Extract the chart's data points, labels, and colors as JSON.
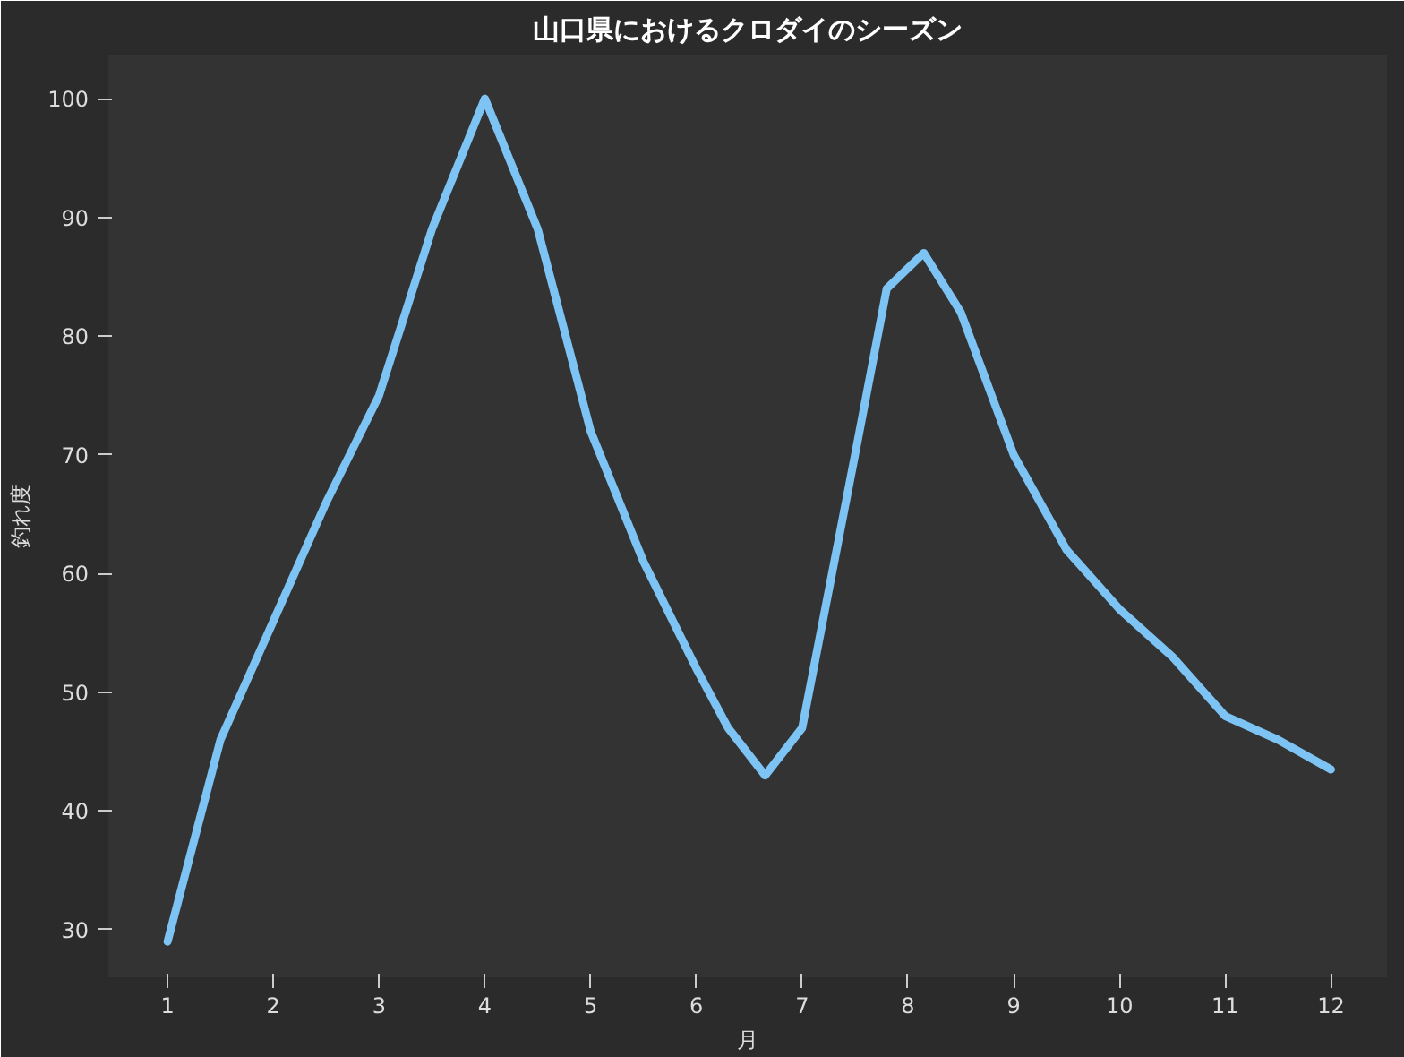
{
  "chart_data": {
    "type": "line",
    "title": "山口県におけるクロダイのシーズン",
    "xlabel": "月",
    "ylabel": "釣れ度",
    "x": [
      1,
      1.5,
      2,
      2.5,
      3,
      3.5,
      4,
      4.5,
      5,
      5.5,
      6,
      6.3,
      6.65,
      7,
      7.5,
      7.8,
      8.15,
      8.5,
      9,
      9.5,
      10,
      10.5,
      11,
      11.5,
      12
    ],
    "series": [
      {
        "color": "#7dc4f5",
        "values": [
          29,
          46,
          56,
          66,
          75,
          89,
          100,
          89,
          72,
          61,
          52,
          47,
          43,
          47,
          70,
          84,
          87,
          82,
          70,
          62,
          57,
          53,
          48,
          46,
          43.5
        ]
      }
    ],
    "xlim": [
      0.44,
      12.53
    ],
    "ylim": [
      26,
      103.7
    ],
    "xticks": [
      1,
      2,
      3,
      4,
      5,
      6,
      7,
      8,
      9,
      10,
      11,
      12
    ],
    "yticks": [
      30,
      40,
      50,
      60,
      70,
      80,
      90,
      100
    ],
    "grid": false,
    "marker": "none",
    "line_style": "solid"
  }
}
